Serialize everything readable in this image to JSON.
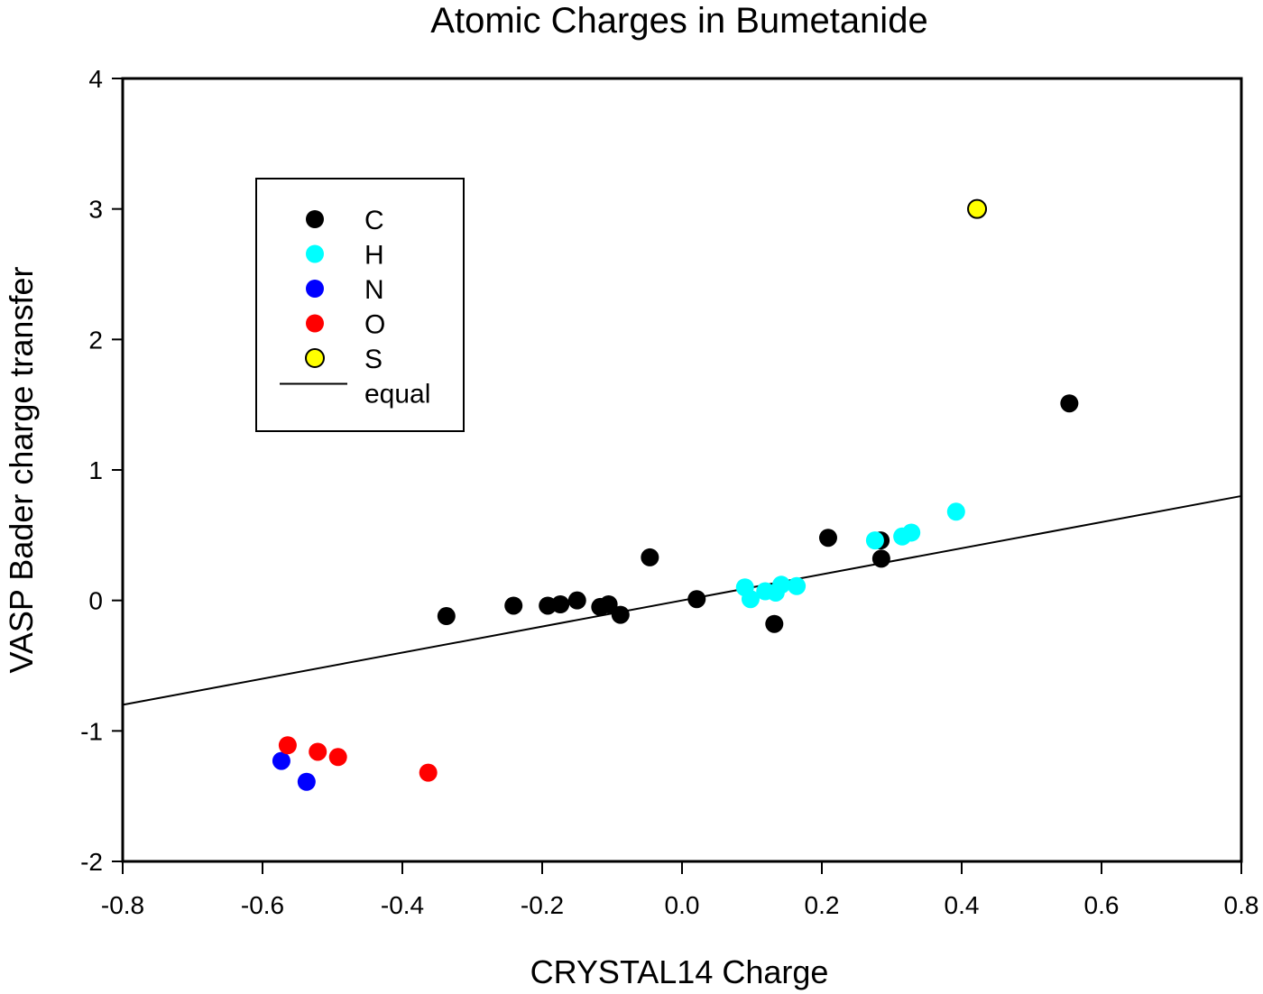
{
  "chart_data": {
    "type": "scatter",
    "title": "Atomic Charges in Bumetanide",
    "xlabel": "CRYSTAL14 Charge",
    "ylabel": "VASP Bader charge transfer",
    "xlim": [
      -0.8,
      0.8
    ],
    "ylim": [
      -2,
      4
    ],
    "xticks": [
      "-0.8",
      "-0.6",
      "-0.4",
      "-0.2",
      "0.0",
      "0.2",
      "0.4",
      "0.6",
      "0.8"
    ],
    "yticks": [
      "-2",
      "-1",
      "0",
      "1",
      "2",
      "3",
      "4"
    ],
    "grid": false,
    "legend_position": "upper left (inset box)",
    "series": [
      {
        "name": "C",
        "color": "#000000",
        "marker": "circle",
        "points": [
          [
            -0.337,
            -0.12
          ],
          [
            -0.241,
            -0.04
          ],
          [
            -0.192,
            -0.04
          ],
          [
            -0.174,
            -0.03
          ],
          [
            -0.15,
            0.0
          ],
          [
            -0.117,
            -0.05
          ],
          [
            -0.105,
            -0.03
          ],
          [
            -0.088,
            -0.11
          ],
          [
            -0.046,
            0.33
          ],
          [
            0.021,
            0.01
          ],
          [
            0.132,
            -0.18
          ],
          [
            0.209,
            0.48
          ],
          [
            0.284,
            0.46
          ],
          [
            0.285,
            0.32
          ],
          [
            0.554,
            1.51
          ]
        ]
      },
      {
        "name": "H",
        "color": "#00FFFF",
        "marker": "circle",
        "points": [
          [
            0.09,
            0.1
          ],
          [
            0.098,
            0.01
          ],
          [
            0.119,
            0.07
          ],
          [
            0.134,
            0.06
          ],
          [
            0.142,
            0.12
          ],
          [
            0.164,
            0.11
          ],
          [
            0.276,
            0.46
          ],
          [
            0.315,
            0.49
          ],
          [
            0.328,
            0.52
          ],
          [
            0.392,
            0.68
          ]
        ]
      },
      {
        "name": "N",
        "color": "#0000FF",
        "marker": "circle",
        "points": [
          [
            -0.573,
            -1.23
          ],
          [
            -0.537,
            -1.39
          ]
        ]
      },
      {
        "name": "O",
        "color": "#FF0000",
        "marker": "circle",
        "points": [
          [
            -0.564,
            -1.11
          ],
          [
            -0.521,
            -1.16
          ],
          [
            -0.492,
            -1.2
          ],
          [
            -0.363,
            -1.32
          ]
        ]
      },
      {
        "name": "S",
        "color": "#FFFF00",
        "stroke": "#000000",
        "marker": "circle-outlined",
        "points": [
          [
            0.422,
            3.0
          ]
        ]
      },
      {
        "name": "equal",
        "color": "#000000",
        "type": "line",
        "points": [
          [
            -0.8,
            -0.8
          ],
          [
            0.8,
            0.8
          ]
        ]
      }
    ]
  }
}
